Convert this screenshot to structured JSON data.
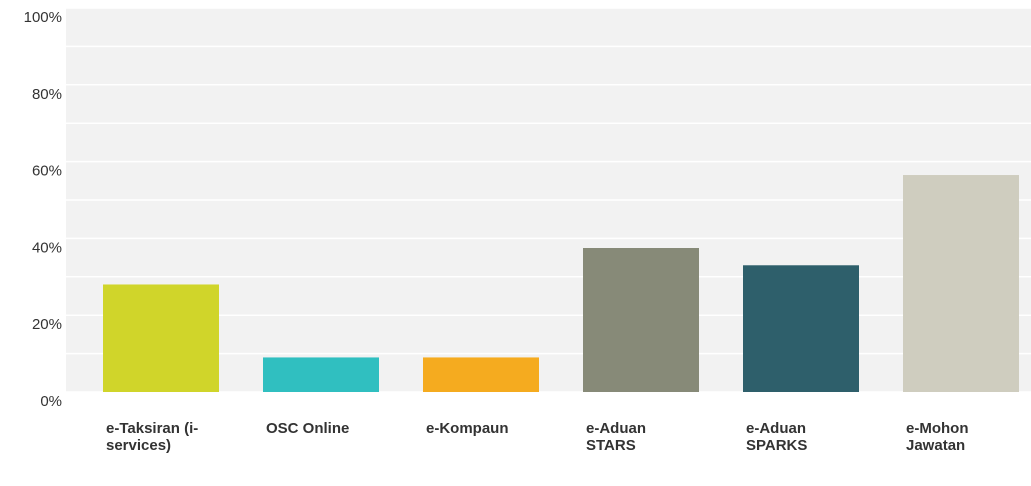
{
  "chart_data": {
    "type": "bar",
    "categories": [
      "e-Taksiran (i-services)",
      "OSC Online",
      "e-Kompaun",
      "e-Aduan STARS",
      "e-Aduan SPARKS",
      "e-Mohon Jawatan"
    ],
    "values": [
      28,
      9,
      9,
      37.5,
      33,
      56.5
    ],
    "colors": [
      "#d0d52a",
      "#30bfc0",
      "#f5ab1f",
      "#878a78",
      "#2e5f6b",
      "#cfcdbf"
    ],
    "ylim": [
      0,
      100
    ],
    "yticks": [
      {
        "value": 0,
        "label": "0%"
      },
      {
        "value": 20,
        "label": "20%"
      },
      {
        "value": 40,
        "label": "40%"
      },
      {
        "value": 60,
        "label": "60%"
      },
      {
        "value": 80,
        "label": "80%"
      },
      {
        "value": 100,
        "label": "100%"
      }
    ],
    "minor_yticks": [
      10,
      30,
      50,
      70,
      90
    ],
    "grid": true
  }
}
